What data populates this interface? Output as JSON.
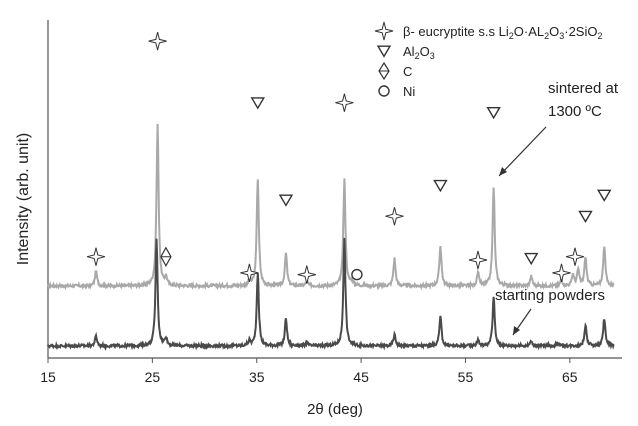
{
  "chart_data": {
    "type": "line",
    "xlabel": "2θ (deg)",
    "ylabel": "Intensity (arb. unit)",
    "xlim": [
      15,
      70
    ],
    "x_ticks": [
      15,
      25,
      35,
      45,
      55,
      65
    ],
    "y_tick_labels": "none",
    "grid": false,
    "legend_position": "top-right",
    "legend": [
      {
        "symbol": "star",
        "text": "β- eucryptite s.s Li",
        "sub1": "2",
        "mid1": "O·AL",
        "sub2": "2",
        "mid2": "O",
        "sub3": "3",
        "mid3": "·2SiO",
        "sub4": "2"
      },
      {
        "symbol": "triangle",
        "text": "Al",
        "sub1": "2",
        "mid1": "O",
        "sub2": "3"
      },
      {
        "symbol": "diamond",
        "text": "C"
      },
      {
        "symbol": "circle",
        "text": "Ni"
      }
    ],
    "annotations": {
      "sintered_line1": "sintered at",
      "sintered_line2": "1300 ºC",
      "starting": "starting powders"
    },
    "colors": {
      "sintered": "#a9a9a9",
      "starting": "#4a4a4a",
      "axis": "#555555"
    },
    "series": [
      {
        "label": "sintered at 1300 ºC",
        "baseline": 0.42,
        "peaks": [
          [
            19.6,
            0.09
          ],
          [
            25.5,
            1.0
          ],
          [
            26.3,
            0.05
          ],
          [
            34.3,
            0.03
          ],
          [
            35.1,
            0.66
          ],
          [
            37.8,
            0.2
          ],
          [
            39.8,
            0.03
          ],
          [
            43.4,
            0.66
          ],
          [
            44.1,
            0.03
          ],
          [
            48.2,
            0.17
          ],
          [
            52.6,
            0.25
          ],
          [
            56.2,
            0.08
          ],
          [
            57.7,
            0.61
          ],
          [
            61.3,
            0.06
          ],
          [
            64.2,
            0.04
          ],
          [
            65.3,
            0.07
          ],
          [
            65.8,
            0.1
          ],
          [
            66.5,
            0.18
          ],
          [
            68.3,
            0.25
          ]
        ]
      },
      {
        "label": "starting powders",
        "baseline": 0.05,
        "peaks": [
          [
            19.6,
            0.06
          ],
          [
            25.4,
            0.66
          ],
          [
            26.3,
            0.05
          ],
          [
            34.3,
            0.03
          ],
          [
            35.1,
            0.45
          ],
          [
            37.8,
            0.17
          ],
          [
            39.8,
            0.02
          ],
          [
            43.4,
            0.66
          ],
          [
            48.2,
            0.07
          ],
          [
            52.6,
            0.18
          ],
          [
            56.2,
            0.04
          ],
          [
            57.7,
            0.3
          ],
          [
            61.3,
            0.03
          ],
          [
            63.8,
            0.02
          ],
          [
            66.5,
            0.13
          ],
          [
            68.3,
            0.17
          ]
        ]
      }
    ],
    "peak_markers": [
      {
        "type": "star",
        "x": 19.6,
        "y": 0.6
      },
      {
        "type": "star",
        "x": 25.5,
        "y": 1.93
      },
      {
        "type": "diamond",
        "x": 26.3,
        "y": 0.6
      },
      {
        "type": "star",
        "x": 34.3,
        "y": 0.5
      },
      {
        "type": "triangle",
        "x": 35.1,
        "y": 1.55
      },
      {
        "type": "triangle",
        "x": 37.8,
        "y": 0.95
      },
      {
        "type": "star",
        "x": 39.8,
        "y": 0.49
      },
      {
        "type": "star",
        "x": 43.4,
        "y": 1.55
      },
      {
        "type": "circle",
        "x": 44.6,
        "y": 0.49
      },
      {
        "type": "star",
        "x": 48.2,
        "y": 0.85
      },
      {
        "type": "triangle",
        "x": 52.6,
        "y": 1.04
      },
      {
        "type": "star",
        "x": 56.2,
        "y": 0.58
      },
      {
        "type": "triangle",
        "x": 57.7,
        "y": 1.49
      },
      {
        "type": "triangle",
        "x": 61.3,
        "y": 0.59
      },
      {
        "type": "star",
        "x": 64.2,
        "y": 0.5
      },
      {
        "type": "star",
        "x": 65.5,
        "y": 0.6
      },
      {
        "type": "triangle",
        "x": 66.5,
        "y": 0.85
      },
      {
        "type": "triangle",
        "x": 68.3,
        "y": 0.98
      }
    ]
  }
}
